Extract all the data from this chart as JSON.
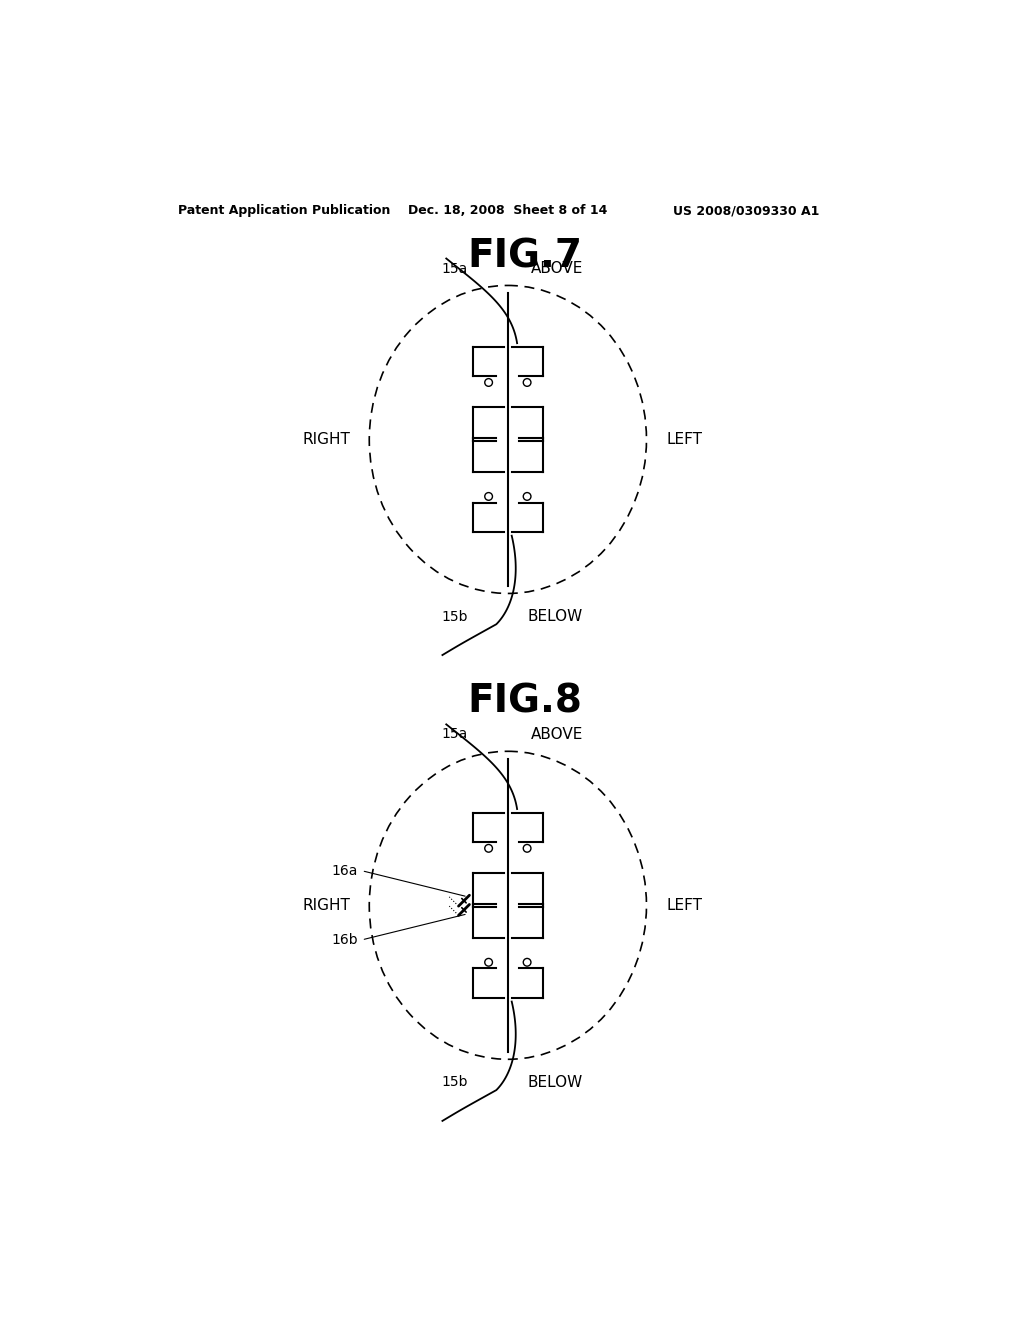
{
  "bg_color": "#ffffff",
  "line_color": "#000000",
  "header_left": "Patent Application Publication",
  "header_mid": "Dec. 18, 2008  Sheet 8 of 14",
  "header_right": "US 2008/0309330 A1",
  "fig7_title": "FIG.7",
  "fig8_title": "FIG.8",
  "fig7_label_above": "ABOVE",
  "fig7_label_below": "BELOW",
  "fig7_label_right": "RIGHT",
  "fig7_label_left": "LEFT",
  "fig7_label_15a": "15a",
  "fig7_label_15b": "15b",
  "fig8_label_above": "ABOVE",
  "fig8_label_below": "BELOW",
  "fig8_label_right": "RIGHT",
  "fig8_label_left": "LEFT",
  "fig8_label_15a": "15a",
  "fig8_label_15b": "15b",
  "fig8_label_16a": "16a",
  "fig8_label_16b": "16b"
}
